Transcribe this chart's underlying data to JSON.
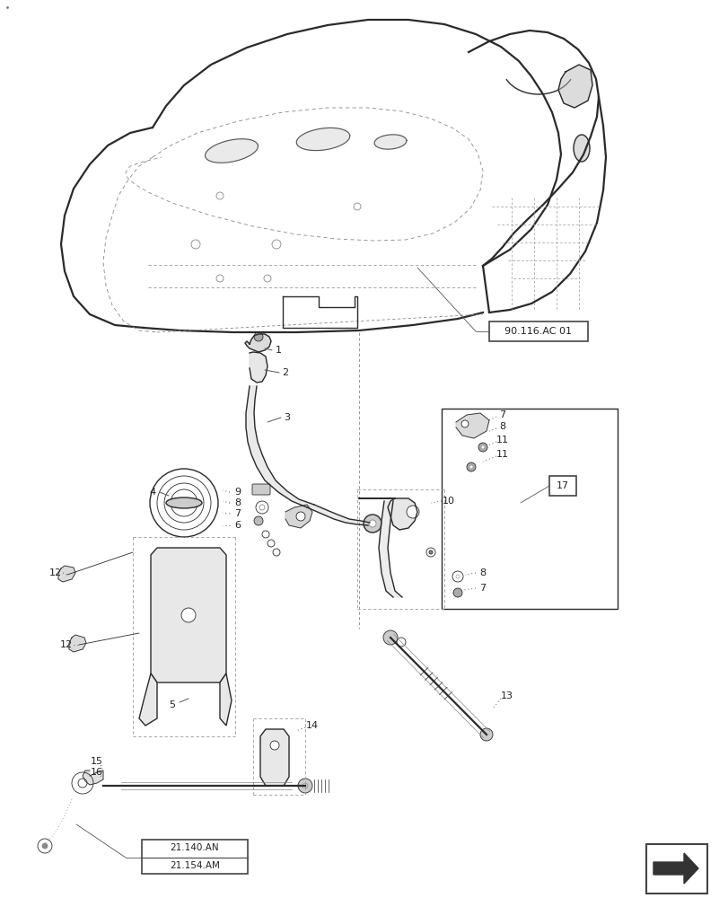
{
  "bg_color": "#ffffff",
  "line_color": "#2a2a2a",
  "label_color": "#222222",
  "ref_label_1": "90.116.AC 01",
  "ref_label_2": "21.154.AM",
  "ref_label_3": "21.140.AN",
  "ref_label_17": "17"
}
